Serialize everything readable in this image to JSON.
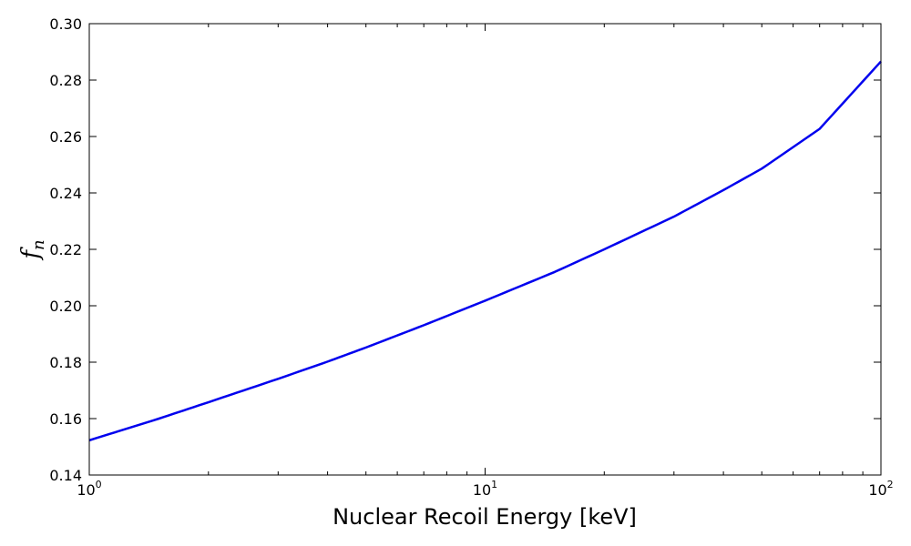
{
  "chart_data": {
    "type": "line",
    "title": "",
    "xlabel": "Nuclear Recoil Energy [keV]",
    "ylabel": {
      "symbol": "f",
      "subscript": "n"
    },
    "x_scale": "log",
    "xlim": [
      1,
      100
    ],
    "ylim": [
      0.14,
      0.3
    ],
    "x_ticks": [
      {
        "value": 1,
        "base": "10",
        "exp": "0"
      },
      {
        "value": 10,
        "base": "10",
        "exp": "1"
      },
      {
        "value": 100,
        "base": "10",
        "exp": "2"
      }
    ],
    "y_ticks": [
      {
        "value": 0.14,
        "label": "0.14"
      },
      {
        "value": 0.16,
        "label": "0.16"
      },
      {
        "value": 0.18,
        "label": "0.18"
      },
      {
        "value": 0.2,
        "label": "0.20"
      },
      {
        "value": 0.22,
        "label": "0.22"
      },
      {
        "value": 0.24,
        "label": "0.24"
      },
      {
        "value": 0.26,
        "label": "0.26"
      },
      {
        "value": 0.28,
        "label": "0.28"
      },
      {
        "value": 0.3,
        "label": "0.30"
      }
    ],
    "grid": false,
    "series": [
      {
        "color": "#0000ee",
        "x": [
          1,
          1.5,
          2,
          3,
          4,
          5,
          7,
          10,
          15,
          20,
          30,
          40,
          50,
          70,
          100
        ],
        "y": [
          0.1523,
          0.16,
          0.1658,
          0.1741,
          0.1802,
          0.1852,
          0.1931,
          0.2018,
          0.212,
          0.22,
          0.2316,
          0.241,
          0.2486,
          0.2627,
          0.2866
        ]
      }
    ]
  }
}
